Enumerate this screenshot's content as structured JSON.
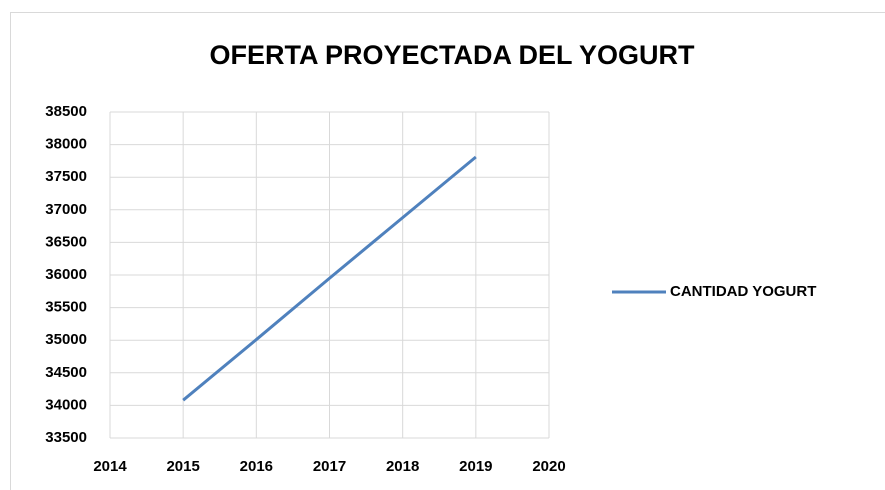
{
  "chart_data": {
    "type": "line",
    "title": "OFERTA PROYECTADA DEL YOGURT",
    "x": [
      2015,
      2016,
      2017,
      2018,
      2019
    ],
    "series": [
      {
        "name": "CANTIDAD YOGURT",
        "color": "#4f81bd",
        "values": [
          34080,
          35010,
          35950,
          36880,
          37810
        ]
      }
    ],
    "xlim": [
      2014,
      2020
    ],
    "xticks": [
      2014,
      2015,
      2016,
      2017,
      2018,
      2019,
      2020
    ],
    "ylim": [
      33500,
      38500
    ],
    "yticks": [
      33500,
      34000,
      34500,
      35000,
      35500,
      36000,
      36500,
      37000,
      37500,
      38000,
      38500
    ],
    "grid": true,
    "legend": "right"
  }
}
